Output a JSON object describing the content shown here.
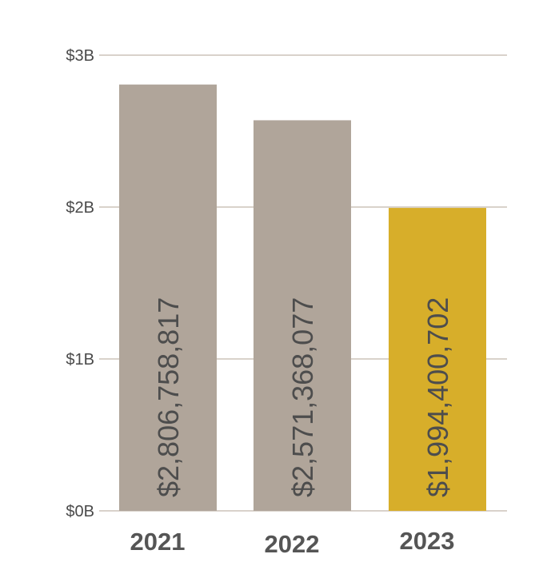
{
  "chart_data": {
    "type": "bar",
    "title": "",
    "xlabel": "",
    "ylabel": "",
    "categories": [
      "2021",
      "2022",
      "2023"
    ],
    "values": [
      2806758817,
      2571368077,
      1994400702
    ],
    "value_labels": [
      "$2,806,758,817",
      "$2,571,368,077",
      "$1,994,400,702"
    ],
    "bar_colors": [
      "#b0a59a",
      "#b0a59a",
      "#d7ae2a"
    ],
    "ylim": [
      0,
      3000000000
    ],
    "yticks": [
      {
        "value": 0,
        "label": "$0B"
      },
      {
        "value": 1000000000,
        "label": "$1B"
      },
      {
        "value": 2000000000,
        "label": "$2B"
      },
      {
        "value": 3000000000,
        "label": "$3B"
      }
    ],
    "grid": true,
    "legend": "none"
  }
}
